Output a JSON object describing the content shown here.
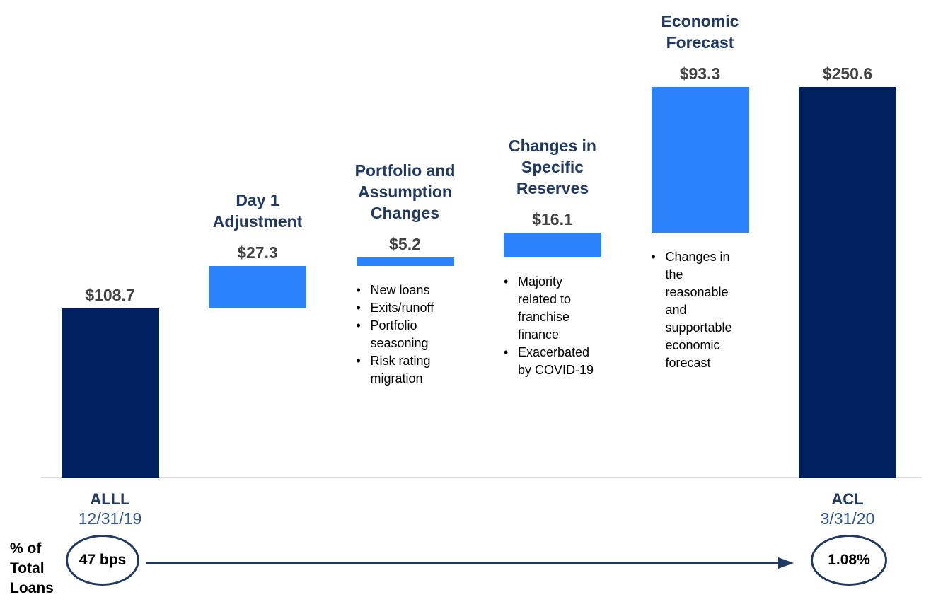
{
  "chart_data": {
    "type": "waterfall",
    "title": "",
    "columns": [
      {
        "header": "",
        "value_label": "$108.7",
        "value": 108.7,
        "role": "total",
        "footer_line1": "ALLL",
        "footer_line2": "12/31/19",
        "notes": []
      },
      {
        "header": "Day 1 Adjustment",
        "value_label": "$27.3",
        "value": 27.3,
        "role": "increase",
        "footer_line1": "",
        "footer_line2": "",
        "notes": []
      },
      {
        "header": "Portfolio and Assumption Changes",
        "value_label": "$5.2",
        "value": 5.2,
        "role": "increase",
        "footer_line1": "",
        "footer_line2": "",
        "notes": [
          "New loans",
          "Exits/runoff",
          "Portfolio seasoning",
          "Risk rating migration"
        ]
      },
      {
        "header": "Changes in Specific Reserves",
        "value_label": "$16.1",
        "value": 16.1,
        "role": "increase",
        "footer_line1": "",
        "footer_line2": "",
        "notes": [
          "Majority related to franchise finance",
          "Exacerbated by COVID-19"
        ]
      },
      {
        "header": "Economic Forecast",
        "value_label": "$93.3",
        "value": 93.3,
        "role": "increase",
        "footer_line1": "",
        "footer_line2": "",
        "notes": [
          "Changes in the reasonable and supportable economic forecast"
        ]
      },
      {
        "header": "",
        "value_label": "$250.6",
        "value": 250.6,
        "role": "total",
        "footer_line1": "ACL",
        "footer_line2": "3/31/20",
        "notes": []
      }
    ],
    "colors": {
      "total_bar": "#002060",
      "change_bar": "#2B82FA",
      "header_text": "#1F3864",
      "value_text": "#404040",
      "footer_label_text": "#1F3864",
      "footer_date_text": "#2E5597",
      "note_text": "#000000",
      "axis_line": "#D9D9D9",
      "arrow": "#1F3864"
    },
    "layout_hints": {
      "baseline_visible": true,
      "grid": false,
      "legend": false
    }
  },
  "bottom_row": {
    "axis_label": "% of Total Loans",
    "start_badge": "47 bps",
    "end_badge": "1.08%"
  }
}
